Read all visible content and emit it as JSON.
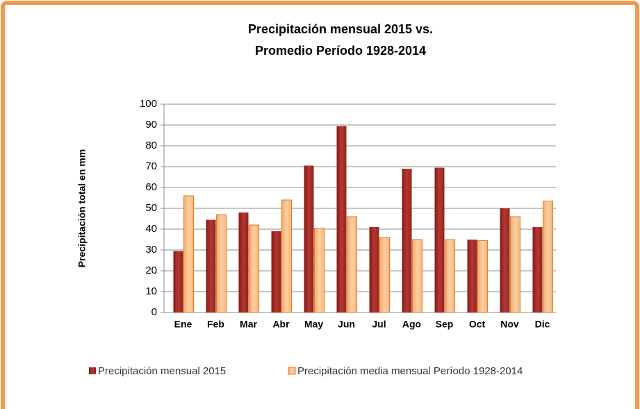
{
  "chart_data": {
    "type": "bar",
    "title": [
      "Precipitación mensual 2015 vs.",
      "Promedio Período 1928-2014"
    ],
    "ylabel": "Precipitación  total en mm",
    "categories": [
      "Ene",
      "Feb",
      "Mar",
      "Abr",
      "May",
      "Jun",
      "Jul",
      "Ago",
      "Sep",
      "Oct",
      "Nov",
      "Dic"
    ],
    "series": [
      {
        "name": "Precipitación mensual 2015",
        "color": "#a7302c",
        "values": [
          29.5,
          44.5,
          48,
          39,
          70.5,
          89.5,
          41,
          69,
          69.5,
          35,
          50,
          41
        ]
      },
      {
        "name": "Precipitación media mensual Período 1928-2014",
        "color": "#fbbf8a",
        "values": [
          56,
          47,
          42,
          54,
          40.5,
          46,
          36,
          35,
          35,
          34.5,
          46,
          53.5
        ]
      }
    ],
    "ylim": [
      0,
      100
    ],
    "yticks": [
      0,
      10,
      20,
      30,
      40,
      50,
      60,
      70,
      80,
      90,
      100
    ],
    "grid": true,
    "legend": "bottom"
  }
}
